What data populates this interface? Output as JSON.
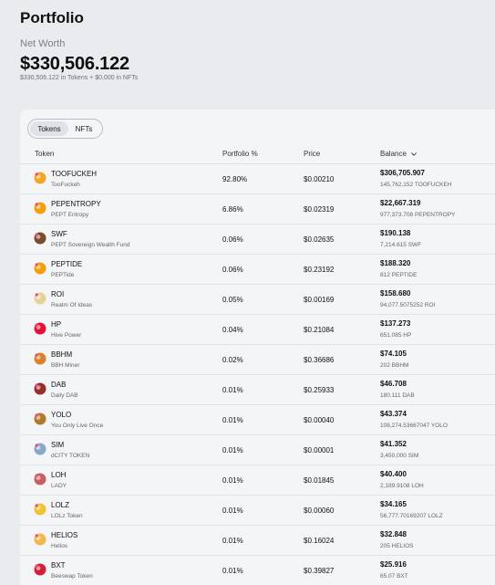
{
  "header": {
    "title": "Portfolio",
    "net_worth_label": "Net Worth",
    "net_worth_value": "$330,506.122",
    "net_worth_breakdown": "$330,506.122 in Tokens + $0.000 in NFTs"
  },
  "toggle": {
    "tokens_label": "Tokens",
    "nfts_label": "NFTs",
    "selected": "Tokens"
  },
  "table": {
    "columns": {
      "token": "Token",
      "portfolio_pct": "Portfolio %",
      "price": "Price",
      "balance": "Balance"
    },
    "sort": "balance-descending",
    "rows": [
      {
        "symbol": "TOOFUCKEH",
        "name": "TooFuckeh",
        "pct": "92.80%",
        "price": "$0.00210",
        "balance": "$306,705.907",
        "amount": "145,762,152 TOOFUCKEH",
        "icon": "toofuckeh-token-icon",
        "color": "#f5a524"
      },
      {
        "symbol": "PEPENTROPY",
        "name": "PEPT Entropy",
        "pct": "6.86%",
        "price": "$0.02319",
        "balance": "$22,667.319",
        "amount": "977,373.708 PEPENTROPY",
        "icon": "pepentropy-token-icon",
        "color": "#f59e0b"
      },
      {
        "symbol": "SWF",
        "name": "PEPT Sovereign Wealth Fund",
        "pct": "0.06%",
        "price": "$0.02635",
        "balance": "$190.138",
        "amount": "7,214.615 SWF",
        "icon": "swf-token-icon",
        "color": "#7c4a2d"
      },
      {
        "symbol": "PEPTIDE",
        "name": "PEPTide",
        "pct": "0.06%",
        "price": "$0.23192",
        "balance": "$188.320",
        "amount": "812 PEPTIDE",
        "icon": "peptide-token-icon",
        "color": "#f59e0b"
      },
      {
        "symbol": "ROI",
        "name": "Realm Of Ideas",
        "pct": "0.05%",
        "price": "$0.00169",
        "balance": "$158.680",
        "amount": "94,077.5075252 ROI",
        "icon": "roi-token-icon",
        "color": "#e5d49a"
      },
      {
        "symbol": "HP",
        "name": "Hive Power",
        "pct": "0.04%",
        "price": "$0.21084",
        "balance": "$137.273",
        "amount": "651.085 HP",
        "icon": "hive-power-icon",
        "color": "#e31337"
      },
      {
        "symbol": "BBHM",
        "name": "BBH Miner",
        "pct": "0.02%",
        "price": "$0.36686",
        "balance": "$74.105",
        "amount": "202 BBHM",
        "icon": "bbhm-token-icon",
        "color": "#d9822b"
      },
      {
        "symbol": "DAB",
        "name": "Daily DAB",
        "pct": "0.01%",
        "price": "$0.25933",
        "balance": "$46.708",
        "amount": "180.111 DAB",
        "icon": "dab-token-icon",
        "color": "#9b2c2c"
      },
      {
        "symbol": "YOLO",
        "name": "You Only Live Once",
        "pct": "0.01%",
        "price": "$0.00040",
        "balance": "$43.374",
        "amount": "108,274.53667047 YOLO",
        "icon": "yolo-token-icon",
        "color": "#b07a2a"
      },
      {
        "symbol": "SIM",
        "name": "dCITY TOKEN",
        "pct": "0.01%",
        "price": "$0.00001",
        "balance": "$41.352",
        "amount": "3,450,000 SIM",
        "icon": "sim-token-icon",
        "color": "#8aa6c8"
      },
      {
        "symbol": "LOH",
        "name": "LADY",
        "pct": "0.01%",
        "price": "$0.01845",
        "balance": "$40.400",
        "amount": "2,189.9108 LOH",
        "icon": "loh-token-icon",
        "color": "#c9605e"
      },
      {
        "symbol": "LOLZ",
        "name": "LOLz Token",
        "pct": "0.01%",
        "price": "$0.00060",
        "balance": "$34.165",
        "amount": "56,777.70169207 LOLZ",
        "icon": "lolz-token-icon",
        "color": "#f2c230"
      },
      {
        "symbol": "HELIOS",
        "name": "Helios",
        "pct": "0.01%",
        "price": "$0.16024",
        "balance": "$32.848",
        "amount": "205 HELIOS",
        "icon": "helios-token-icon",
        "color": "#f2b84b"
      },
      {
        "symbol": "BXT",
        "name": "Beeswap Token",
        "pct": "0.01%",
        "price": "$0.39827",
        "balance": "$25.916",
        "amount": "65.07 BXT",
        "icon": "bxt-token-icon",
        "color": "#d3203a"
      }
    ]
  }
}
